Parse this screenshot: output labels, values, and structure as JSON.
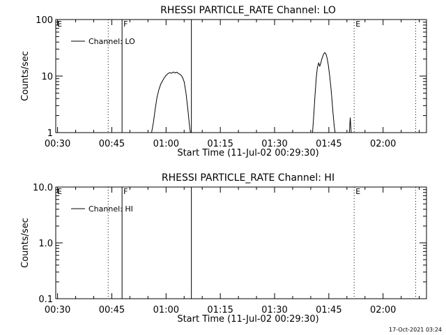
{
  "timestamp": "17-Oct-2021 03:24",
  "chart_data": [
    {
      "type": "line",
      "title": "RHESSI PARTICLE_RATE Channel: LO",
      "xlabel": "Start Time (11-Jul-02 00:29:30)",
      "ylabel": "Counts/sec",
      "y_scale": "log",
      "xlim": [
        "00:29:30",
        "02:12:00"
      ],
      "ylim": [
        1,
        100
      ],
      "x_ticks": [
        "00:30",
        "00:45",
        "01:00",
        "01:15",
        "01:30",
        "01:45",
        "02:00"
      ],
      "y_ticks": [
        "1",
        "10",
        "100"
      ],
      "legend": {
        "position": "top-left",
        "entries": [
          "Channel: LO"
        ]
      },
      "markers": [
        {
          "time": "00:44:00",
          "style": "dotted",
          "label": ""
        },
        {
          "time": "00:47:50",
          "style": "solid",
          "label": "F"
        },
        {
          "time": "01:07:00",
          "style": "solid",
          "label": ""
        },
        {
          "time": "01:52:00",
          "style": "dotted",
          "label": "E"
        },
        {
          "time": "02:09:00",
          "style": "dotted",
          "label": ""
        }
      ],
      "corner_labels": [
        "E"
      ],
      "series": [
        {
          "name": "Channel: LO",
          "segments": [
            [
              [
                "00:56:00",
                1.0
              ],
              [
                "00:56:30",
                1.5
              ],
              [
                "00:57:00",
                2.6
              ],
              [
                "00:57:30",
                4.2
              ],
              [
                "00:58:00",
                5.7
              ],
              [
                "00:58:30",
                7.1
              ],
              [
                "00:59:00",
                8.2
              ],
              [
                "00:59:30",
                9.3
              ],
              [
                "01:00:00",
                10.3
              ],
              [
                "01:00:30",
                11.0
              ],
              [
                "01:01:00",
                11.5
              ],
              [
                "01:01:30",
                11.2
              ],
              [
                "01:02:00",
                11.8
              ],
              [
                "01:02:30",
                11.4
              ],
              [
                "01:03:00",
                11.7
              ],
              [
                "01:03:30",
                11.0
              ],
              [
                "01:04:00",
                10.6
              ],
              [
                "01:04:30",
                9.6
              ],
              [
                "01:05:00",
                7.9
              ],
              [
                "01:05:30",
                5.1
              ],
              [
                "01:06:00",
                2.7
              ],
              [
                "01:06:30",
                1.3
              ],
              [
                "01:06:45",
                1.0
              ]
            ],
            [
              [
                "01:40:30",
                1.0
              ],
              [
                "01:40:50",
                2.0
              ],
              [
                "01:41:10",
                4.5
              ],
              [
                "01:41:30",
                9.0
              ],
              [
                "01:41:50",
                14.0
              ],
              [
                "01:42:10",
                17.0
              ],
              [
                "01:42:30",
                15.0
              ],
              [
                "01:42:50",
                17.5
              ],
              [
                "01:43:10",
                21.0
              ],
              [
                "01:43:30",
                24.0
              ],
              [
                "01:43:50",
                26.0
              ],
              [
                "01:44:10",
                25.0
              ],
              [
                "01:44:30",
                21.0
              ],
              [
                "01:44:50",
                16.0
              ],
              [
                "01:45:10",
                11.0
              ],
              [
                "01:45:30",
                7.0
              ],
              [
                "01:45:50",
                4.0
              ],
              [
                "01:46:10",
                2.2
              ],
              [
                "01:46:30",
                1.3
              ],
              [
                "01:46:45",
                1.0
              ]
            ],
            [
              [
                "01:50:40",
                1.0
              ],
              [
                "01:50:55",
                1.85
              ],
              [
                "01:51:10",
                1.0
              ]
            ]
          ]
        }
      ]
    },
    {
      "type": "line",
      "title": "RHESSI PARTICLE_RATE Channel: HI",
      "xlabel": "Start Time (11-Jul-02 00:29:30)",
      "ylabel": "Counts/sec",
      "y_scale": "log",
      "xlim": [
        "00:29:30",
        "02:12:00"
      ],
      "ylim": [
        0.1,
        10
      ],
      "x_ticks": [
        "00:30",
        "00:45",
        "01:00",
        "01:15",
        "01:30",
        "01:45",
        "02:00"
      ],
      "y_ticks": [
        "0.1",
        "1.0",
        "10.0"
      ],
      "legend": {
        "position": "top-left",
        "entries": [
          "Channel: HI"
        ]
      },
      "markers": [
        {
          "time": "00:44:00",
          "style": "dotted",
          "label": ""
        },
        {
          "time": "00:47:50",
          "style": "solid",
          "label": "F"
        },
        {
          "time": "01:07:00",
          "style": "solid",
          "label": ""
        },
        {
          "time": "01:52:00",
          "style": "dotted",
          "label": "E"
        },
        {
          "time": "02:09:00",
          "style": "dotted",
          "label": ""
        }
      ],
      "corner_labels": [
        "E"
      ],
      "series": [
        {
          "name": "Channel: HI",
          "segments": []
        }
      ]
    }
  ]
}
